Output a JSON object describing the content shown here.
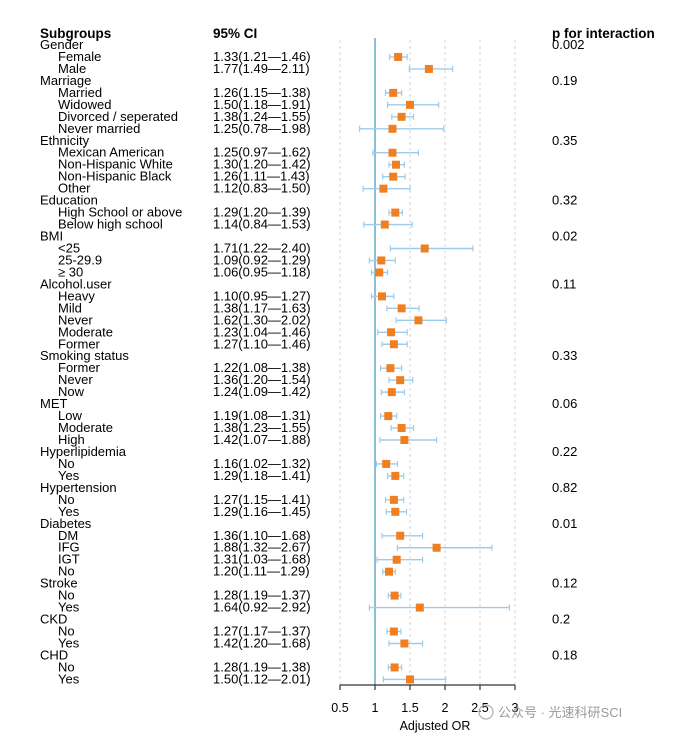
{
  "chart_data": {
    "type": "forest",
    "headers": {
      "subgroups": "Subgroups",
      "ci": "95% CI",
      "p": "p for interaction"
    },
    "xlabel": "Adjusted OR",
    "xlim": [
      0.5,
      3
    ],
    "xticks": [
      0.5,
      1,
      1.5,
      2,
      2.5,
      3
    ],
    "xtick_labels": [
      "0.5",
      "1",
      "1.5",
      "2",
      "2.5",
      "3"
    ],
    "reference_value": 1,
    "groups": [
      {
        "name": "Gender",
        "p": "0.002",
        "rows": [
          {
            "label": "Female",
            "or": 1.33,
            "lo": 1.21,
            "hi": 1.46,
            "ci": "1.33(1.21—1.46)"
          },
          {
            "label": "Male",
            "or": 1.77,
            "lo": 1.49,
            "hi": 2.11,
            "ci": "1.77(1.49—2.11)"
          }
        ]
      },
      {
        "name": "Marriage",
        "p": "0.19",
        "rows": [
          {
            "label": "Married",
            "or": 1.26,
            "lo": 1.15,
            "hi": 1.38,
            "ci": "1.26(1.15—1.38)"
          },
          {
            "label": "Widowed",
            "or": 1.5,
            "lo": 1.18,
            "hi": 1.91,
            "ci": "1.50(1.18—1.91)"
          },
          {
            "label": "Divorced / seperated",
            "or": 1.38,
            "lo": 1.24,
            "hi": 1.55,
            "ci": "1.38(1.24—1.55)"
          },
          {
            "label": "Never married",
            "or": 1.25,
            "lo": 0.78,
            "hi": 1.98,
            "ci": "1.25(0.78—1.98)"
          }
        ]
      },
      {
        "name": "Ethnicity",
        "p": "0.35",
        "rows": [
          {
            "label": "Mexican American",
            "or": 1.25,
            "lo": 0.97,
            "hi": 1.62,
            "ci": "1.25(0.97—1.62)"
          },
          {
            "label": "Non-Hispanic White",
            "or": 1.3,
            "lo": 1.2,
            "hi": 1.42,
            "ci": "1.30(1.20—1.42)"
          },
          {
            "label": "Non-Hispanic Black",
            "or": 1.26,
            "lo": 1.11,
            "hi": 1.43,
            "ci": "1.26(1.11—1.43)"
          },
          {
            "label": "Other",
            "or": 1.12,
            "lo": 0.83,
            "hi": 1.5,
            "ci": "1.12(0.83—1.50)"
          }
        ]
      },
      {
        "name": "Education",
        "p": "0.32",
        "rows": [
          {
            "label": "High School or above",
            "or": 1.29,
            "lo": 1.2,
            "hi": 1.39,
            "ci": "1.29(1.20—1.39)"
          },
          {
            "label": "Below high school",
            "or": 1.14,
            "lo": 0.84,
            "hi": 1.53,
            "ci": "1.14(0.84—1.53)"
          }
        ]
      },
      {
        "name": "BMI",
        "p": "0.02",
        "rows": [
          {
            "label": "<25",
            "or": 1.71,
            "lo": 1.22,
            "hi": 2.4,
            "ci": "1.71(1.22—2.40)"
          },
          {
            "label": "25-29.9",
            "or": 1.09,
            "lo": 0.92,
            "hi": 1.29,
            "ci": "1.09(0.92—1.29)"
          },
          {
            "label": "≥ 30",
            "or": 1.06,
            "lo": 0.95,
            "hi": 1.18,
            "ci": "1.06(0.95—1.18)"
          }
        ]
      },
      {
        "name": "Alcohol.user",
        "p": "0.11",
        "rows": [
          {
            "label": "Heavy",
            "or": 1.1,
            "lo": 0.95,
            "hi": 1.27,
            "ci": "1.10(0.95—1.27)"
          },
          {
            "label": "Mild",
            "or": 1.38,
            "lo": 1.17,
            "hi": 1.63,
            "ci": "1.38(1.17—1.63)"
          },
          {
            "label": "Never",
            "or": 1.62,
            "lo": 1.3,
            "hi": 2.02,
            "ci": "1.62(1.30—2.02)"
          },
          {
            "label": "Moderate",
            "or": 1.23,
            "lo": 1.04,
            "hi": 1.46,
            "ci": "1.23(1.04—1.46)"
          },
          {
            "label": "Former",
            "or": 1.27,
            "lo": 1.1,
            "hi": 1.46,
            "ci": "1.27(1.10—1.46)"
          }
        ]
      },
      {
        "name": "Smoking status",
        "p": "0.33",
        "rows": [
          {
            "label": "Former",
            "or": 1.22,
            "lo": 1.08,
            "hi": 1.38,
            "ci": "1.22(1.08—1.38)"
          },
          {
            "label": "Never",
            "or": 1.36,
            "lo": 1.2,
            "hi": 1.54,
            "ci": "1.36(1.20—1.54)"
          },
          {
            "label": "Now",
            "or": 1.24,
            "lo": 1.09,
            "hi": 1.42,
            "ci": "1.24(1.09—1.42)"
          }
        ]
      },
      {
        "name": "MET",
        "p": "0.06",
        "rows": [
          {
            "label": "Low",
            "or": 1.19,
            "lo": 1.08,
            "hi": 1.31,
            "ci": "1.19(1.08—1.31)"
          },
          {
            "label": "Moderate",
            "or": 1.38,
            "lo": 1.23,
            "hi": 1.55,
            "ci": "1.38(1.23—1.55)"
          },
          {
            "label": "High",
            "or": 1.42,
            "lo": 1.07,
            "hi": 1.88,
            "ci": "1.42(1.07—1.88)"
          }
        ]
      },
      {
        "name": "Hyperlipidemia",
        "p": "0.22",
        "rows": [
          {
            "label": "No",
            "or": 1.16,
            "lo": 1.02,
            "hi": 1.32,
            "ci": "1.16(1.02—1.32)"
          },
          {
            "label": "Yes",
            "or": 1.29,
            "lo": 1.18,
            "hi": 1.41,
            "ci": "1.29(1.18—1.41)"
          }
        ]
      },
      {
        "name": "Hypertension",
        "p": "0.82",
        "rows": [
          {
            "label": "No",
            "or": 1.27,
            "lo": 1.15,
            "hi": 1.41,
            "ci": "1.27(1.15—1.41)"
          },
          {
            "label": "Yes",
            "or": 1.29,
            "lo": 1.16,
            "hi": 1.45,
            "ci": "1.29(1.16—1.45)"
          }
        ]
      },
      {
        "name": "Diabetes",
        "p": "0.01",
        "rows": [
          {
            "label": "DM",
            "or": 1.36,
            "lo": 1.1,
            "hi": 1.68,
            "ci": "1.36(1.10—1.68)"
          },
          {
            "label": "IFG",
            "or": 1.88,
            "lo": 1.32,
            "hi": 2.67,
            "ci": "1.88(1.32—2.67)"
          },
          {
            "label": "IGT",
            "or": 1.31,
            "lo": 1.03,
            "hi": 1.68,
            "ci": "1.31(1.03—1.68)"
          },
          {
            "label": "No",
            "or": 1.2,
            "lo": 1.11,
            "hi": 1.29,
            "ci": "1.20(1.11—1.29)"
          }
        ]
      },
      {
        "name": "Stroke",
        "p": "0.12",
        "rows": [
          {
            "label": "No",
            "or": 1.28,
            "lo": 1.19,
            "hi": 1.37,
            "ci": "1.28(1.19—1.37)"
          },
          {
            "label": "Yes",
            "or": 1.64,
            "lo": 0.92,
            "hi": 2.92,
            "ci": "1.64(0.92—2.92)"
          }
        ]
      },
      {
        "name": "CKD",
        "p": "0.2",
        "rows": [
          {
            "label": "No",
            "or": 1.27,
            "lo": 1.17,
            "hi": 1.37,
            "ci": "1.27(1.17—1.37)"
          },
          {
            "label": "Yes",
            "or": 1.42,
            "lo": 1.2,
            "hi": 1.68,
            "ci": "1.42(1.20—1.68)"
          }
        ]
      },
      {
        "name": "CHD",
        "p": "0.18",
        "rows": [
          {
            "label": "No",
            "or": 1.28,
            "lo": 1.19,
            "hi": 1.38,
            "ci": "1.28(1.19—1.38)"
          },
          {
            "label": "Yes",
            "or": 1.5,
            "lo": 1.12,
            "hi": 2.01,
            "ci": "1.50(1.12—2.01)"
          }
        ]
      }
    ],
    "colors": {
      "point": "#f07f1f",
      "ci_line": "#9fcbea",
      "reference": "#6fb0c9",
      "grid": "#d4d4d4",
      "text": "#222222"
    }
  },
  "watermark": "公众号 · 光速科研SCI"
}
